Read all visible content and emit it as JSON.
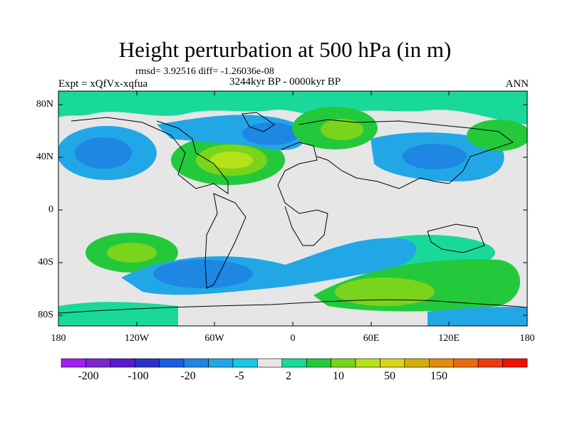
{
  "title": "Height perturbation at 500 hPa (in m)",
  "stats": "rmsd= 3.92516 diff= -1.26036e-08",
  "experiment": "Expt = xQfVx-xqfua",
  "period": "3244kyr BP - 0000kyr BP",
  "season": "ANN",
  "lat_ticks": [
    "80N",
    "40N",
    "0",
    "40S",
    "80S"
  ],
  "lon_ticks": [
    "180",
    "120W",
    "60W",
    "0",
    "60E",
    "120E",
    "180"
  ],
  "colorbar": {
    "colors": [
      "#a020f0",
      "#7d26cd",
      "#5a1ad0",
      "#2b31c8",
      "#1a5fdc",
      "#1e86e3",
      "#21a7e6",
      "#1ac6e6",
      "#e6e6e6",
      "#19d99a",
      "#24c93b",
      "#7ad41b",
      "#b5e21a",
      "#d6d51a",
      "#d4ae0d",
      "#e08c10",
      "#ea6a12",
      "#ef3b12",
      "#f01000"
    ],
    "labels": [
      "-200",
      "-100",
      "-20",
      "-5",
      "2",
      "10",
      "50",
      "150"
    ]
  }
}
